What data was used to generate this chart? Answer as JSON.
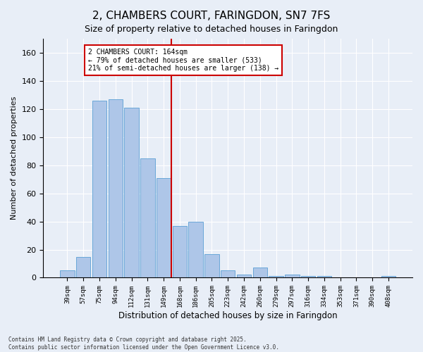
{
  "title": "2, CHAMBERS COURT, FARINGDON, SN7 7FS",
  "subtitle": "Size of property relative to detached houses in Faringdon",
  "xlabel": "Distribution of detached houses by size in Faringdon",
  "ylabel": "Number of detached properties",
  "footer_line1": "Contains HM Land Registry data © Crown copyright and database right 2025.",
  "footer_line2": "Contains public sector information licensed under the Open Government Licence v3.0.",
  "categories": [
    "39sqm",
    "57sqm",
    "75sqm",
    "94sqm",
    "112sqm",
    "131sqm",
    "149sqm",
    "168sqm",
    "186sqm",
    "205sqm",
    "223sqm",
    "242sqm",
    "260sqm",
    "279sqm",
    "297sqm",
    "316sqm",
    "334sqm",
    "353sqm",
    "371sqm",
    "390sqm",
    "408sqm"
  ],
  "values": [
    5,
    15,
    126,
    127,
    121,
    85,
    71,
    37,
    40,
    17,
    5,
    2,
    7,
    1,
    2,
    1,
    1,
    0,
    0,
    0,
    1
  ],
  "bar_color": "#aec6e8",
  "bar_edge_color": "#5a9fd4",
  "vline_x_index": 7,
  "vline_color": "#cc0000",
  "annotation_text": "2 CHAMBERS COURT: 164sqm\n← 79% of detached houses are smaller (533)\n21% of semi-detached houses are larger (138) →",
  "annotation_box_color": "#ffffff",
  "annotation_box_edge_color": "#cc0000",
  "annotation_fontsize": 7,
  "title_fontsize": 11,
  "subtitle_fontsize": 9,
  "background_color": "#e8eef7",
  "plot_background_color": "#e8eef7",
  "ylim": [
    0,
    170
  ],
  "yticks": [
    0,
    20,
    40,
    60,
    80,
    100,
    120,
    140,
    160
  ]
}
